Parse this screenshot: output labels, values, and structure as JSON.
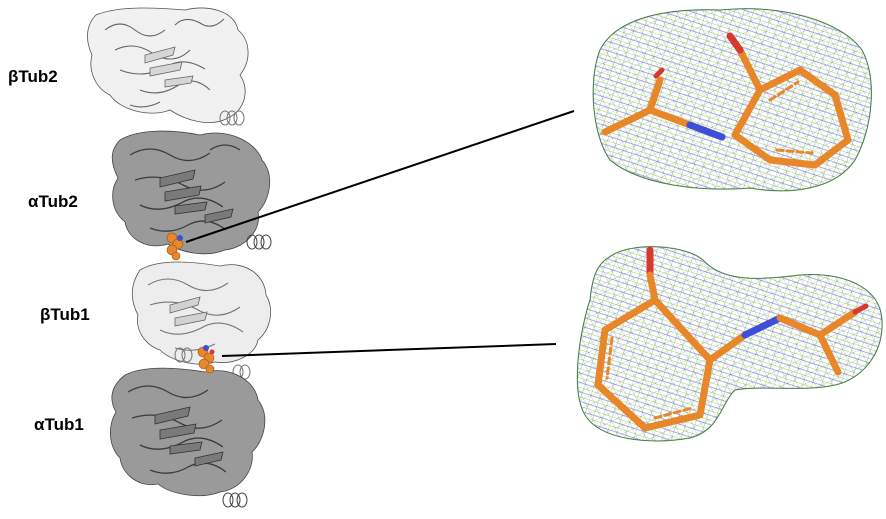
{
  "subunits": [
    {
      "id": "beta2",
      "label": "βTub2",
      "shade": "#e0e0e0"
    },
    {
      "id": "alpha2",
      "label": "αTub2",
      "shade": "#8a8a8a"
    },
    {
      "id": "beta1",
      "label": "βTub1",
      "shade": "#e0e0e0"
    },
    {
      "id": "alpha1",
      "label": "αTub1",
      "shade": "#8a8a8a"
    }
  ],
  "colors": {
    "ligand_carbon": "#e8862a",
    "ligand_nitrogen": "#3d4fd6",
    "ligand_oxygen": "#d63a2e",
    "mesh_green": "#7fc23a",
    "mesh_blue": "#2d3a9c",
    "protein_outline": "#555555"
  },
  "icons": {
    "ligand_sphere": "spacefill-ligand-icon",
    "mesh_density": "electron-density-mesh"
  }
}
